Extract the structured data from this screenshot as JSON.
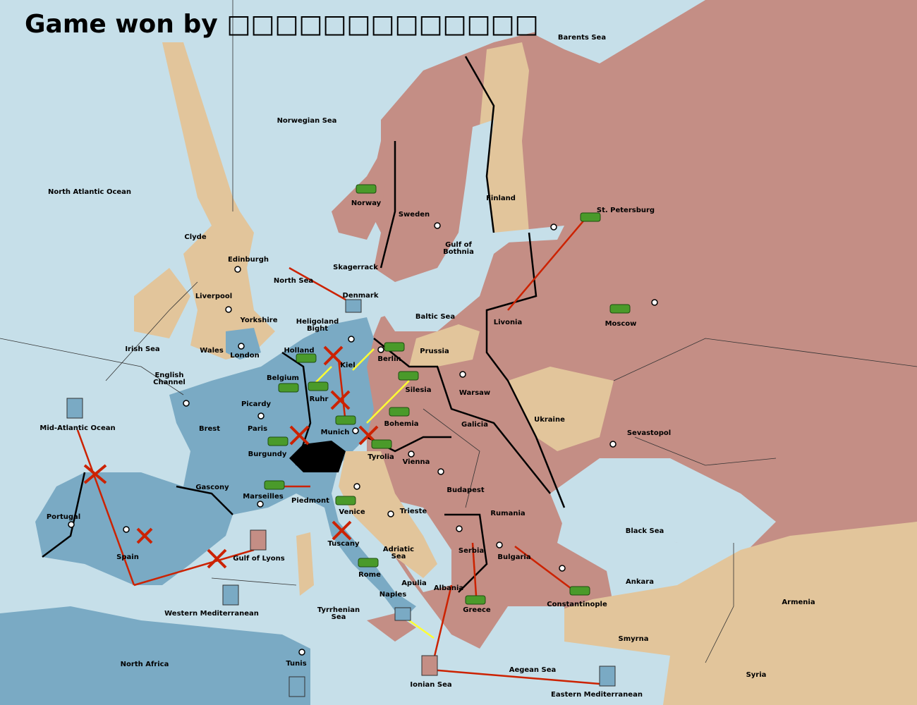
{
  "title": "Game won by □□□□□□□□□□□□□",
  "regions": [
    [
      "Barents Sea"
    ],
    [
      "Norwegian Sea"
    ],
    [
      "North Atlantic Ocean"
    ],
    [
      "Finland"
    ],
    [
      "Norway"
    ],
    [
      "St. Petersburg"
    ],
    [
      "Sweden"
    ],
    [
      "Clyde"
    ],
    [
      "Gulf of",
      "Bothnia"
    ],
    [
      "Edinburgh"
    ],
    [
      "Skagerrack"
    ],
    [
      "North Sea"
    ],
    [
      "Liverpool"
    ],
    [
      "Denmark"
    ],
    [
      "Baltic Sea"
    ],
    [
      "Yorkshire"
    ],
    [
      "Livonia"
    ],
    [
      "Moscow"
    ],
    [
      "Heligoland",
      "Bight"
    ],
    [
      "Irish Sea"
    ],
    [
      "Holland"
    ],
    [
      "Prussia"
    ],
    [
      "Wales"
    ],
    [
      "London"
    ],
    [
      "Berlin"
    ],
    [
      "Kiel"
    ],
    [
      "English",
      "Channel"
    ],
    [
      "Belgium"
    ],
    [
      "Silesia"
    ],
    [
      "Warsaw"
    ],
    [
      "Ruhr"
    ],
    [
      "Picardy"
    ],
    [
      "Ukraine"
    ],
    [
      "Bohemia"
    ],
    [
      "Galicia"
    ],
    [
      "Mid-Atlantic Ocean"
    ],
    [
      "Brest"
    ],
    [
      "Paris"
    ],
    [
      "Munich"
    ],
    [
      "Sevastopol"
    ],
    [
      "Burgundy"
    ],
    [
      "Tyrolia"
    ],
    [
      "Vienna"
    ],
    [
      "Gascony"
    ],
    [
      "Budapest"
    ],
    [
      "Marseilles"
    ],
    [
      "Piedmont"
    ],
    [
      "Portugal"
    ],
    [
      "Venice"
    ],
    [
      "Trieste"
    ],
    [
      "Rumania"
    ],
    [
      "Black Sea"
    ],
    [
      "Tuscany"
    ],
    [
      "Adriatic",
      "Sea"
    ],
    [
      "Serbia"
    ],
    [
      "Bulgaria"
    ],
    [
      "Spain"
    ],
    [
      "Gulf of Lyons"
    ],
    [
      "Rome"
    ],
    [
      "Apulia"
    ],
    [
      "Ankara"
    ],
    [
      "Albania"
    ],
    [
      "Naples"
    ],
    [
      "Armenia"
    ],
    [
      "Constantinople"
    ],
    [
      "Greece"
    ],
    [
      "Western Mediterranean"
    ],
    [
      "Tyrrhenian",
      "Sea"
    ],
    [
      "Smyrna"
    ],
    [
      "North Africa"
    ],
    [
      "Tunis"
    ],
    [
      "Aegean Sea"
    ],
    [
      "Syria"
    ],
    [
      "Ionian Sea"
    ],
    [
      "Eastern Mediterranean"
    ]
  ]
}
